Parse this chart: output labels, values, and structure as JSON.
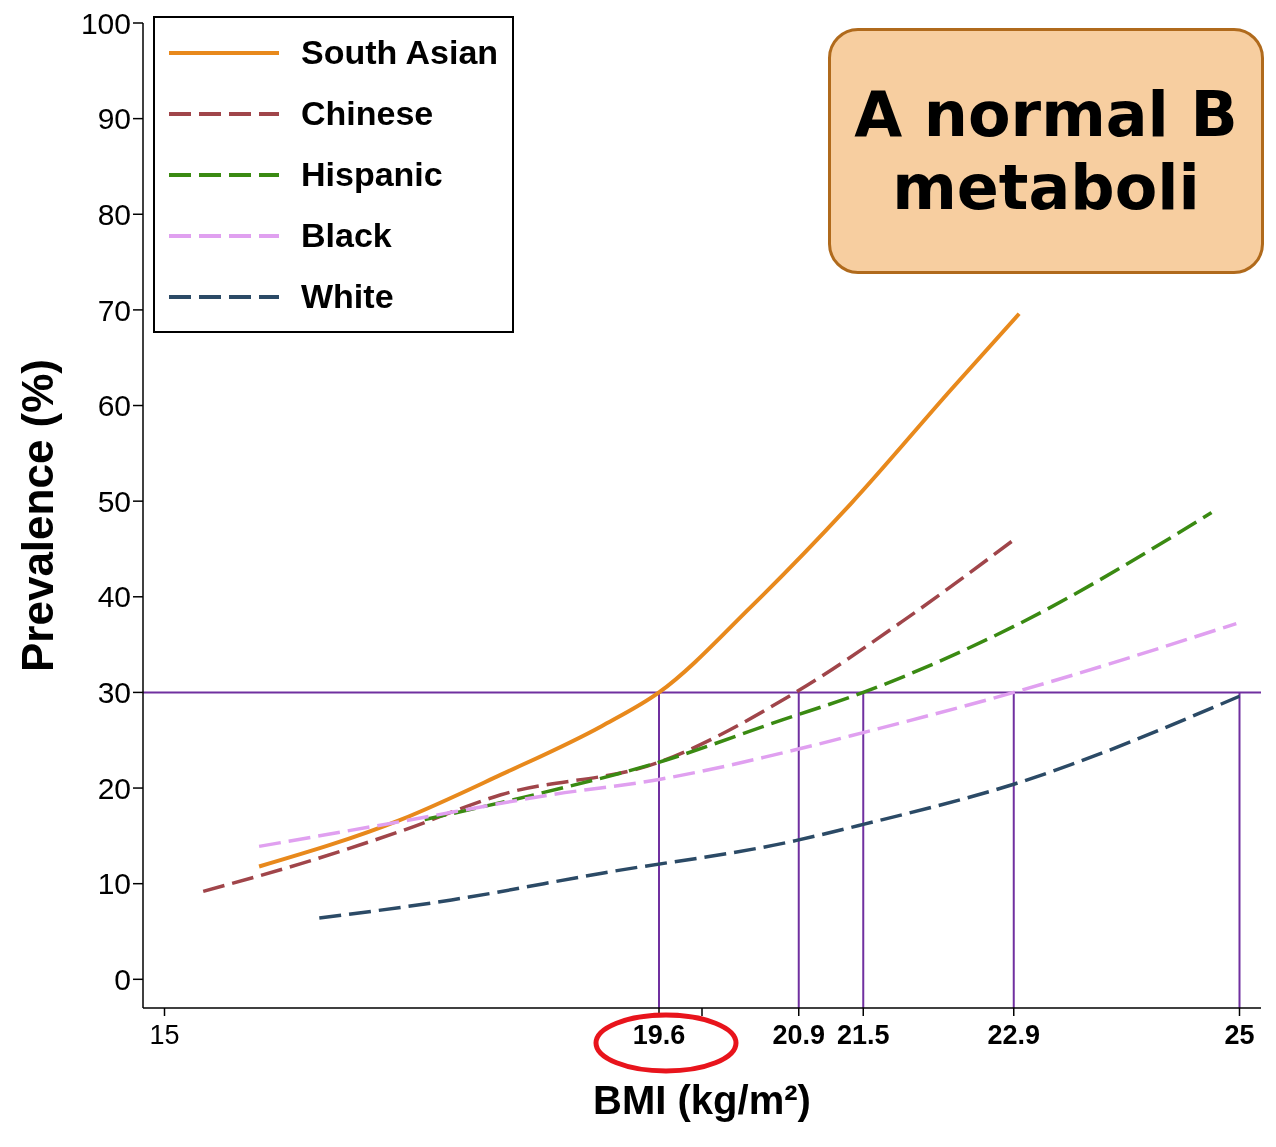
{
  "chart_data": {
    "type": "line",
    "xlabel": "BMI (kg/m²)",
    "ylabel": "Prevalence (%)",
    "xlim": [
      14.8,
      25.2
    ],
    "xticks": [
      15,
      19.6,
      {
        "value": 20,
        "label": null
      },
      20.9,
      21.5,
      22.9,
      25
    ],
    "ylim": [
      -3,
      100
    ],
    "yticks": [
      0,
      10,
      20,
      30,
      40,
      50,
      60,
      70,
      80,
      90,
      100
    ],
    "grid": false,
    "legend": "top left",
    "marker": "none",
    "annotations": [
      "A normal B",
      "metaboli"
    ],
    "ref_lines": [
      {
        "axis": "y",
        "value": 30,
        "color": "#7030a0"
      },
      {
        "axis": "x",
        "value": 19.6,
        "color": "#7030a0"
      },
      {
        "axis": "x",
        "value": 20.9,
        "color": "#7030a0"
      },
      {
        "axis": "x",
        "value": 21.5,
        "color": "#7030a0"
      },
      {
        "axis": "x",
        "value": 22.9,
        "color": "#7030a0"
      },
      {
        "axis": "x",
        "value": 25,
        "color": "#7030a0"
      }
    ],
    "series": [
      {
        "name": "South Asian",
        "color": "#e8891c",
        "line_style": "solid",
        "x": [
          15.88,
          17.2,
          18.13,
          19.07,
          19.6,
          20.46,
          21.39,
          22.32,
          22.95
        ],
        "values": [
          11.8,
          16.7,
          21.4,
          26.5,
          30,
          39,
          49.8,
          61.7,
          69.6
        ]
      },
      {
        "name": "Chinese",
        "color": "#a0454a",
        "line_style": "dashed",
        "x": [
          15.36,
          16.27,
          17.2,
          18.13,
          19.6,
          20.87,
          21.86,
          22.93
        ],
        "values": [
          9.2,
          12.1,
          15.5,
          19.3,
          22.7,
          30,
          37.4,
          46.2
        ]
      },
      {
        "name": "Hispanic",
        "color": "#3a8a12",
        "line_style": "dashed",
        "x": [
          17.42,
          18.44,
          19.6,
          20.74,
          21.5,
          22.9,
          24.74
        ],
        "values": [
          16.7,
          19.3,
          22.7,
          27.1,
          30,
          36.9,
          48.8
        ]
      },
      {
        "name": "Black",
        "color": "#e0a0f0",
        "line_style": "dashed",
        "x": [
          15.88,
          17.2,
          18.6,
          19.6,
          20.87,
          21.5,
          22.9,
          24.97
        ],
        "values": [
          13.9,
          16.5,
          19.3,
          20.9,
          24,
          25.8,
          30,
          37.2
        ]
      },
      {
        "name": "White",
        "color": "#2b4a66",
        "line_style": "dashed",
        "x": [
          16.44,
          17.67,
          19.07,
          20.87,
          21.5,
          22.9,
          25
        ],
        "values": [
          6.4,
          8.3,
          11.1,
          14.5,
          16.2,
          20.4,
          29.6
        ]
      }
    ]
  }
}
